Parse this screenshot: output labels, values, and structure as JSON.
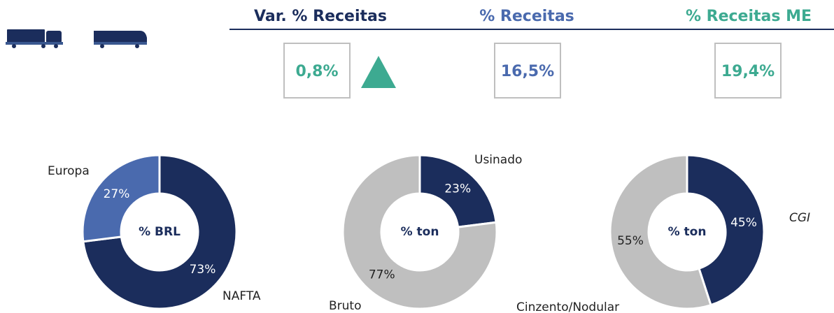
{
  "kpis": [
    {
      "title": "Var. % Receitas",
      "value": "0,8%",
      "title_color": "#1b2d5c",
      "value_color": "#3daa91",
      "trend": "up"
    },
    {
      "title": "% Receitas",
      "value": "16,5%",
      "title_color": "#4a6aae",
      "value_color": "#4a6aae"
    },
    {
      "title": "% Receitas ME",
      "value": "19,4%",
      "title_color": "#3daa91",
      "value_color": "#3daa91"
    }
  ],
  "chart_data": [
    {
      "type": "pie",
      "donut": true,
      "center_label": "% BRL",
      "categories": [
        "NAFTA",
        "Europa"
      ],
      "values": [
        73,
        27
      ],
      "value_labels": [
        "73%",
        "27%"
      ],
      "colors": [
        "#1b2d5c",
        "#4a6aae"
      ]
    },
    {
      "type": "pie",
      "donut": true,
      "center_label": "% ton",
      "categories": [
        "Usinado",
        "Bruto"
      ],
      "values": [
        23,
        77
      ],
      "value_labels": [
        "23%",
        "77%"
      ],
      "colors": [
        "#1b2d5c",
        "#bfbfbf"
      ]
    },
    {
      "type": "pie",
      "donut": true,
      "center_label": "% ton",
      "categories": [
        "CGI",
        "Cinzento/Nodular"
      ],
      "values": [
        45,
        55
      ],
      "value_labels": [
        "45%",
        "55%"
      ],
      "colors": [
        "#1b2d5c",
        "#bfbfbf"
      ]
    }
  ]
}
